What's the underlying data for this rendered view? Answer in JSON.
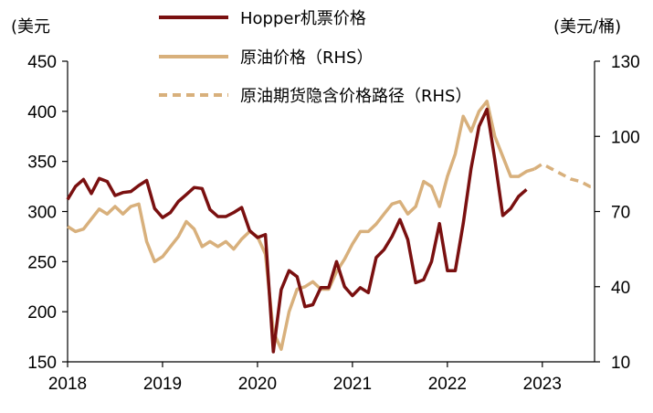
{
  "chart_data": {
    "type": "line",
    "left_unit": "(美元",
    "right_unit": "(美元/桶)",
    "x_ticks": [
      "2018",
      "2019",
      "2020",
      "2021",
      "2022",
      "2023"
    ],
    "y_left_ticks": [
      "450",
      "400",
      "350",
      "300",
      "250",
      "200",
      "150"
    ],
    "y_right_ticks": [
      "130",
      "100",
      "70",
      "40",
      "10"
    ],
    "ylim_left": [
      150,
      450
    ],
    "ylim_right": [
      10,
      130
    ],
    "xlim": [
      2018.0,
      2023.55
    ],
    "legend": [
      {
        "label": "Hopper机票价格",
        "style": "solid",
        "color": "#7a1010"
      },
      {
        "label": "原油价格（RHS）",
        "style": "solid",
        "color": "#d8b07c"
      },
      {
        "label": "原油期货隐含价格路径（RHS）",
        "style": "dashed",
        "color": "#d8b07c"
      }
    ],
    "series": [
      {
        "name": "Hopper机票价格",
        "axis": "left",
        "color": "#7a1010",
        "x": [
          2018.0,
          2018.083,
          2018.167,
          2018.25,
          2018.333,
          2018.417,
          2018.5,
          2018.583,
          2018.667,
          2018.75,
          2018.833,
          2018.917,
          2019.0,
          2019.083,
          2019.167,
          2019.25,
          2019.333,
          2019.417,
          2019.5,
          2019.583,
          2019.667,
          2019.75,
          2019.833,
          2019.917,
          2020.0,
          2020.083,
          2020.167,
          2020.25,
          2020.333,
          2020.417,
          2020.5,
          2020.583,
          2020.667,
          2020.75,
          2020.833,
          2020.917,
          2021.0,
          2021.083,
          2021.167,
          2021.25,
          2021.333,
          2021.417,
          2021.5,
          2021.583,
          2021.667,
          2021.75,
          2021.833,
          2021.917,
          2022.0,
          2022.083,
          2022.167,
          2022.25,
          2022.333,
          2022.417,
          2022.5,
          2022.583,
          2022.667,
          2022.75,
          2022.833
        ],
        "values": [
          312,
          325,
          332,
          318,
          333,
          330,
          316,
          319,
          320,
          326,
          331,
          303,
          294,
          299,
          310,
          317,
          324,
          323,
          302,
          295,
          295,
          299,
          304,
          281,
          274,
          277,
          160,
          222,
          241,
          235,
          205,
          207,
          224,
          224,
          250,
          225,
          216,
          224,
          219,
          254,
          262,
          275,
          292,
          272,
          229,
          232,
          250,
          288,
          241,
          241,
          288,
          343,
          385,
          402,
          352,
          296,
          303,
          315,
          322
        ]
      },
      {
        "name": "原油价格（RHS）",
        "axis": "right",
        "color": "#d8b07c",
        "x": [
          2018.0,
          2018.083,
          2018.167,
          2018.25,
          2018.333,
          2018.417,
          2018.5,
          2018.583,
          2018.667,
          2018.75,
          2018.833,
          2018.917,
          2019.0,
          2019.083,
          2019.167,
          2019.25,
          2019.333,
          2019.417,
          2019.5,
          2019.583,
          2019.667,
          2019.75,
          2019.833,
          2019.917,
          2020.0,
          2020.083,
          2020.167,
          2020.25,
          2020.333,
          2020.417,
          2020.5,
          2020.583,
          2020.667,
          2020.75,
          2020.833,
          2020.917,
          2021.0,
          2021.083,
          2021.167,
          2021.25,
          2021.333,
          2021.417,
          2021.5,
          2021.583,
          2021.667,
          2021.75,
          2021.833,
          2021.917,
          2022.0,
          2022.083,
          2022.167,
          2022.25,
          2022.333,
          2022.417,
          2022.5,
          2022.583,
          2022.667,
          2022.75,
          2022.833,
          2022.917
        ],
        "values": [
          64,
          62,
          63,
          67,
          71,
          69,
          72,
          69,
          72,
          73,
          58,
          50,
          52,
          56,
          60,
          66,
          63,
          56,
          58,
          56,
          58,
          55,
          59,
          62,
          60,
          53,
          22,
          15,
          30,
          39,
          40,
          42,
          39,
          39,
          46,
          51,
          57,
          62,
          62,
          65,
          69,
          73,
          74,
          69,
          72,
          82,
          80,
          72,
          84,
          93,
          108,
          102,
          110,
          114,
          100,
          92,
          84,
          84,
          86,
          87
        ]
      },
      {
        "name": "原油期货隐含价格路径（RHS）",
        "axis": "right",
        "color": "#d8b07c",
        "dashed": true,
        "x": [
          2022.917,
          2023.0,
          2023.1,
          2023.2,
          2023.3,
          2023.4,
          2023.5,
          2023.55
        ],
        "values": [
          87,
          89,
          87,
          85,
          83,
          82,
          80,
          80
        ]
      }
    ]
  }
}
